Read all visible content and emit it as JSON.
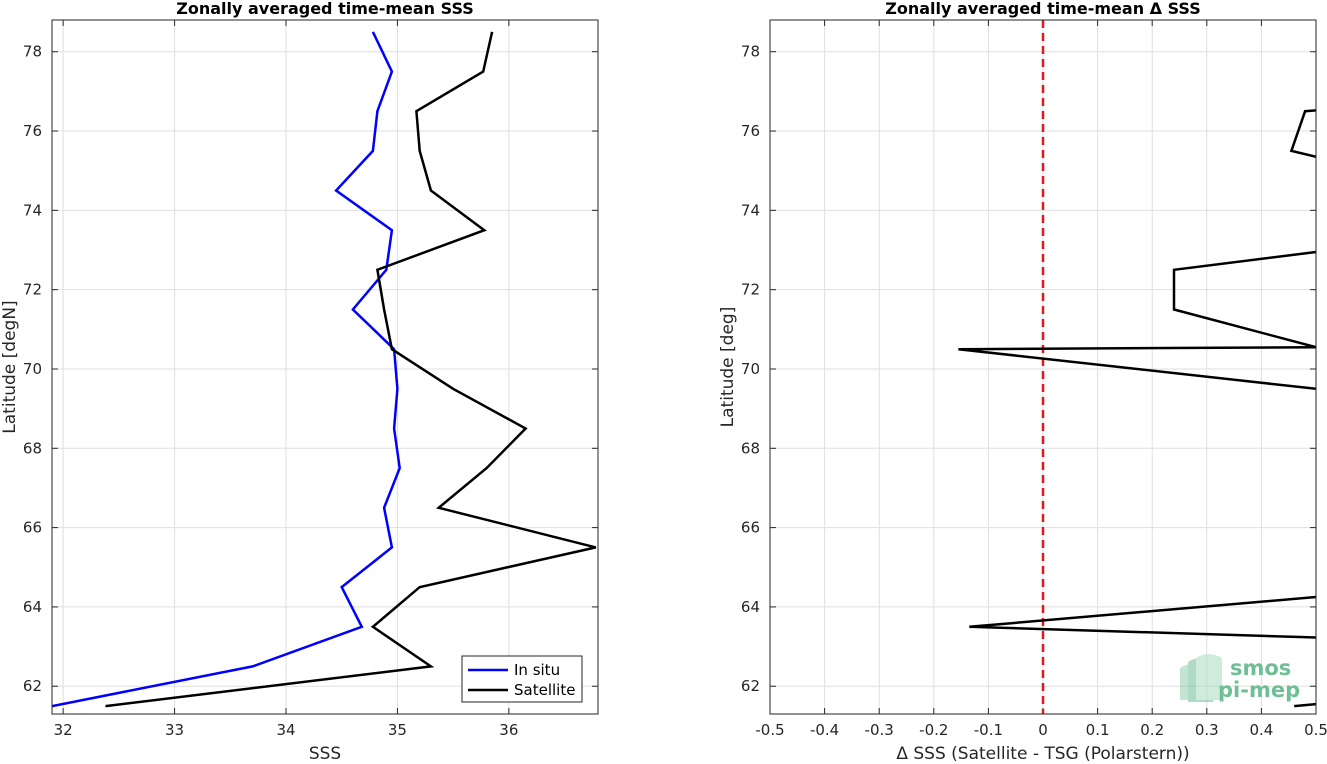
{
  "chart_data": [
    {
      "type": "line",
      "title": "Zonally averaged time-mean SSS",
      "xlabel": "SSS",
      "ylabel": "Latitude [degN]",
      "xlim": [
        31.9,
        36.8
      ],
      "ylim": [
        61.3,
        78.8
      ],
      "xticks": [
        "32",
        "33",
        "34",
        "35",
        "36"
      ],
      "yticks": [
        "62",
        "64",
        "66",
        "68",
        "70",
        "72",
        "74",
        "76",
        "78"
      ],
      "grid": true,
      "legend": "bottom-right",
      "series": [
        {
          "name": "In situ",
          "color": "#0000ff",
          "x": [
            31.9,
            33.7,
            34.68,
            34.5,
            34.95,
            34.88,
            35.02,
            34.97,
            35.0,
            34.97,
            34.6,
            34.9,
            34.95,
            34.45,
            34.78,
            34.82,
            34.95,
            34.78
          ],
          "y": [
            61.5,
            62.5,
            63.5,
            64.5,
            65.5,
            66.5,
            67.5,
            68.5,
            69.5,
            70.5,
            71.5,
            72.5,
            73.5,
            74.5,
            75.5,
            76.5,
            77.5,
            78.5
          ]
        },
        {
          "name": "Satellite",
          "color": "#000000",
          "x": [
            32.38,
            35.3,
            34.78,
            35.2,
            36.78,
            35.37,
            35.8,
            36.15,
            35.5,
            34.95,
            34.88,
            34.82,
            35.78,
            35.3,
            35.2,
            35.17,
            35.77,
            35.85
          ],
          "y": [
            61.5,
            62.5,
            63.5,
            64.5,
            65.5,
            66.5,
            67.5,
            68.5,
            69.5,
            70.5,
            71.5,
            72.5,
            73.5,
            74.5,
            75.5,
            76.5,
            77.5,
            78.5
          ]
        }
      ]
    },
    {
      "type": "line",
      "title": "Zonally averaged time-mean Δ SSS",
      "xlabel": "Δ SSS (Satellite - TSG (Polarstern))",
      "ylabel": "Latitude [deg]",
      "xlim": [
        -0.5,
        0.5
      ],
      "ylim": [
        61.3,
        78.8
      ],
      "xticks": [
        "-0.5",
        "-0.4",
        "-0.3",
        "-0.2",
        "-0.1",
        "0",
        "0.1",
        "0.2",
        "0.3",
        "0.4",
        "0.5"
      ],
      "yticks": [
        "62",
        "64",
        "66",
        "68",
        "70",
        "72",
        "74",
        "76",
        "78"
      ],
      "grid": true,
      "reference_line": {
        "x": 0,
        "color": "#e8161c",
        "style": "dashed"
      },
      "series": [
        {
          "color": "#000000",
          "segments": [
            {
              "x": [
                0.46,
                0.5
              ],
              "y": [
                61.5,
                61.55
              ]
            },
            {
              "x": [
                0.5,
                -0.135,
                0.5
              ],
              "y": [
                63.23,
                63.5,
                64.25
              ]
            },
            {
              "x": [
                0.5,
                -0.155,
                0.5
              ],
              "y": [
                69.5,
                70.5,
                70.55
              ]
            },
            {
              "x": [
                0.5,
                0.24,
                0.24,
                0.5
              ],
              "y": [
                70.55,
                71.5,
                72.5,
                72.95
              ]
            },
            {
              "x": [
                0.5,
                0.455,
                0.48,
                0.5
              ],
              "y": [
                75.35,
                75.5,
                76.5,
                76.52
              ]
            }
          ]
        }
      ]
    }
  ],
  "legend": {
    "items": [
      {
        "label": "In situ",
        "color": "#0000ff"
      },
      {
        "label": "Satellite",
        "color": "#000000"
      }
    ]
  },
  "logo": {
    "line1": "smos",
    "line2": "pi-mep",
    "color": "#6fbf94"
  }
}
